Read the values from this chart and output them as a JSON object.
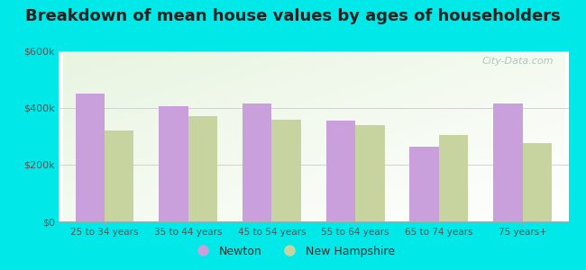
{
  "title": "Breakdown of mean house values by ages of householders",
  "categories": [
    "25 to 34 years",
    "35 to 44 years",
    "45 to 54 years",
    "55 to 64 years",
    "65 to 74 years",
    "75 years+"
  ],
  "newton_values": [
    450000,
    405000,
    415000,
    355000,
    265000,
    415000
  ],
  "nh_values": [
    320000,
    370000,
    360000,
    340000,
    305000,
    275000
  ],
  "newton_color": "#c9a0dc",
  "nh_color": "#c8d4a0",
  "background_color": "#00e8e8",
  "title_fontsize": 13,
  "ylim": [
    0,
    600000
  ],
  "yticks": [
    0,
    200000,
    400000,
    600000
  ],
  "ytick_labels": [
    "$0",
    "$200k",
    "$400k",
    "$600k"
  ],
  "legend_newton": "Newton",
  "legend_nh": "New Hampshire",
  "bar_width": 0.35,
  "watermark": "City-Data.com"
}
